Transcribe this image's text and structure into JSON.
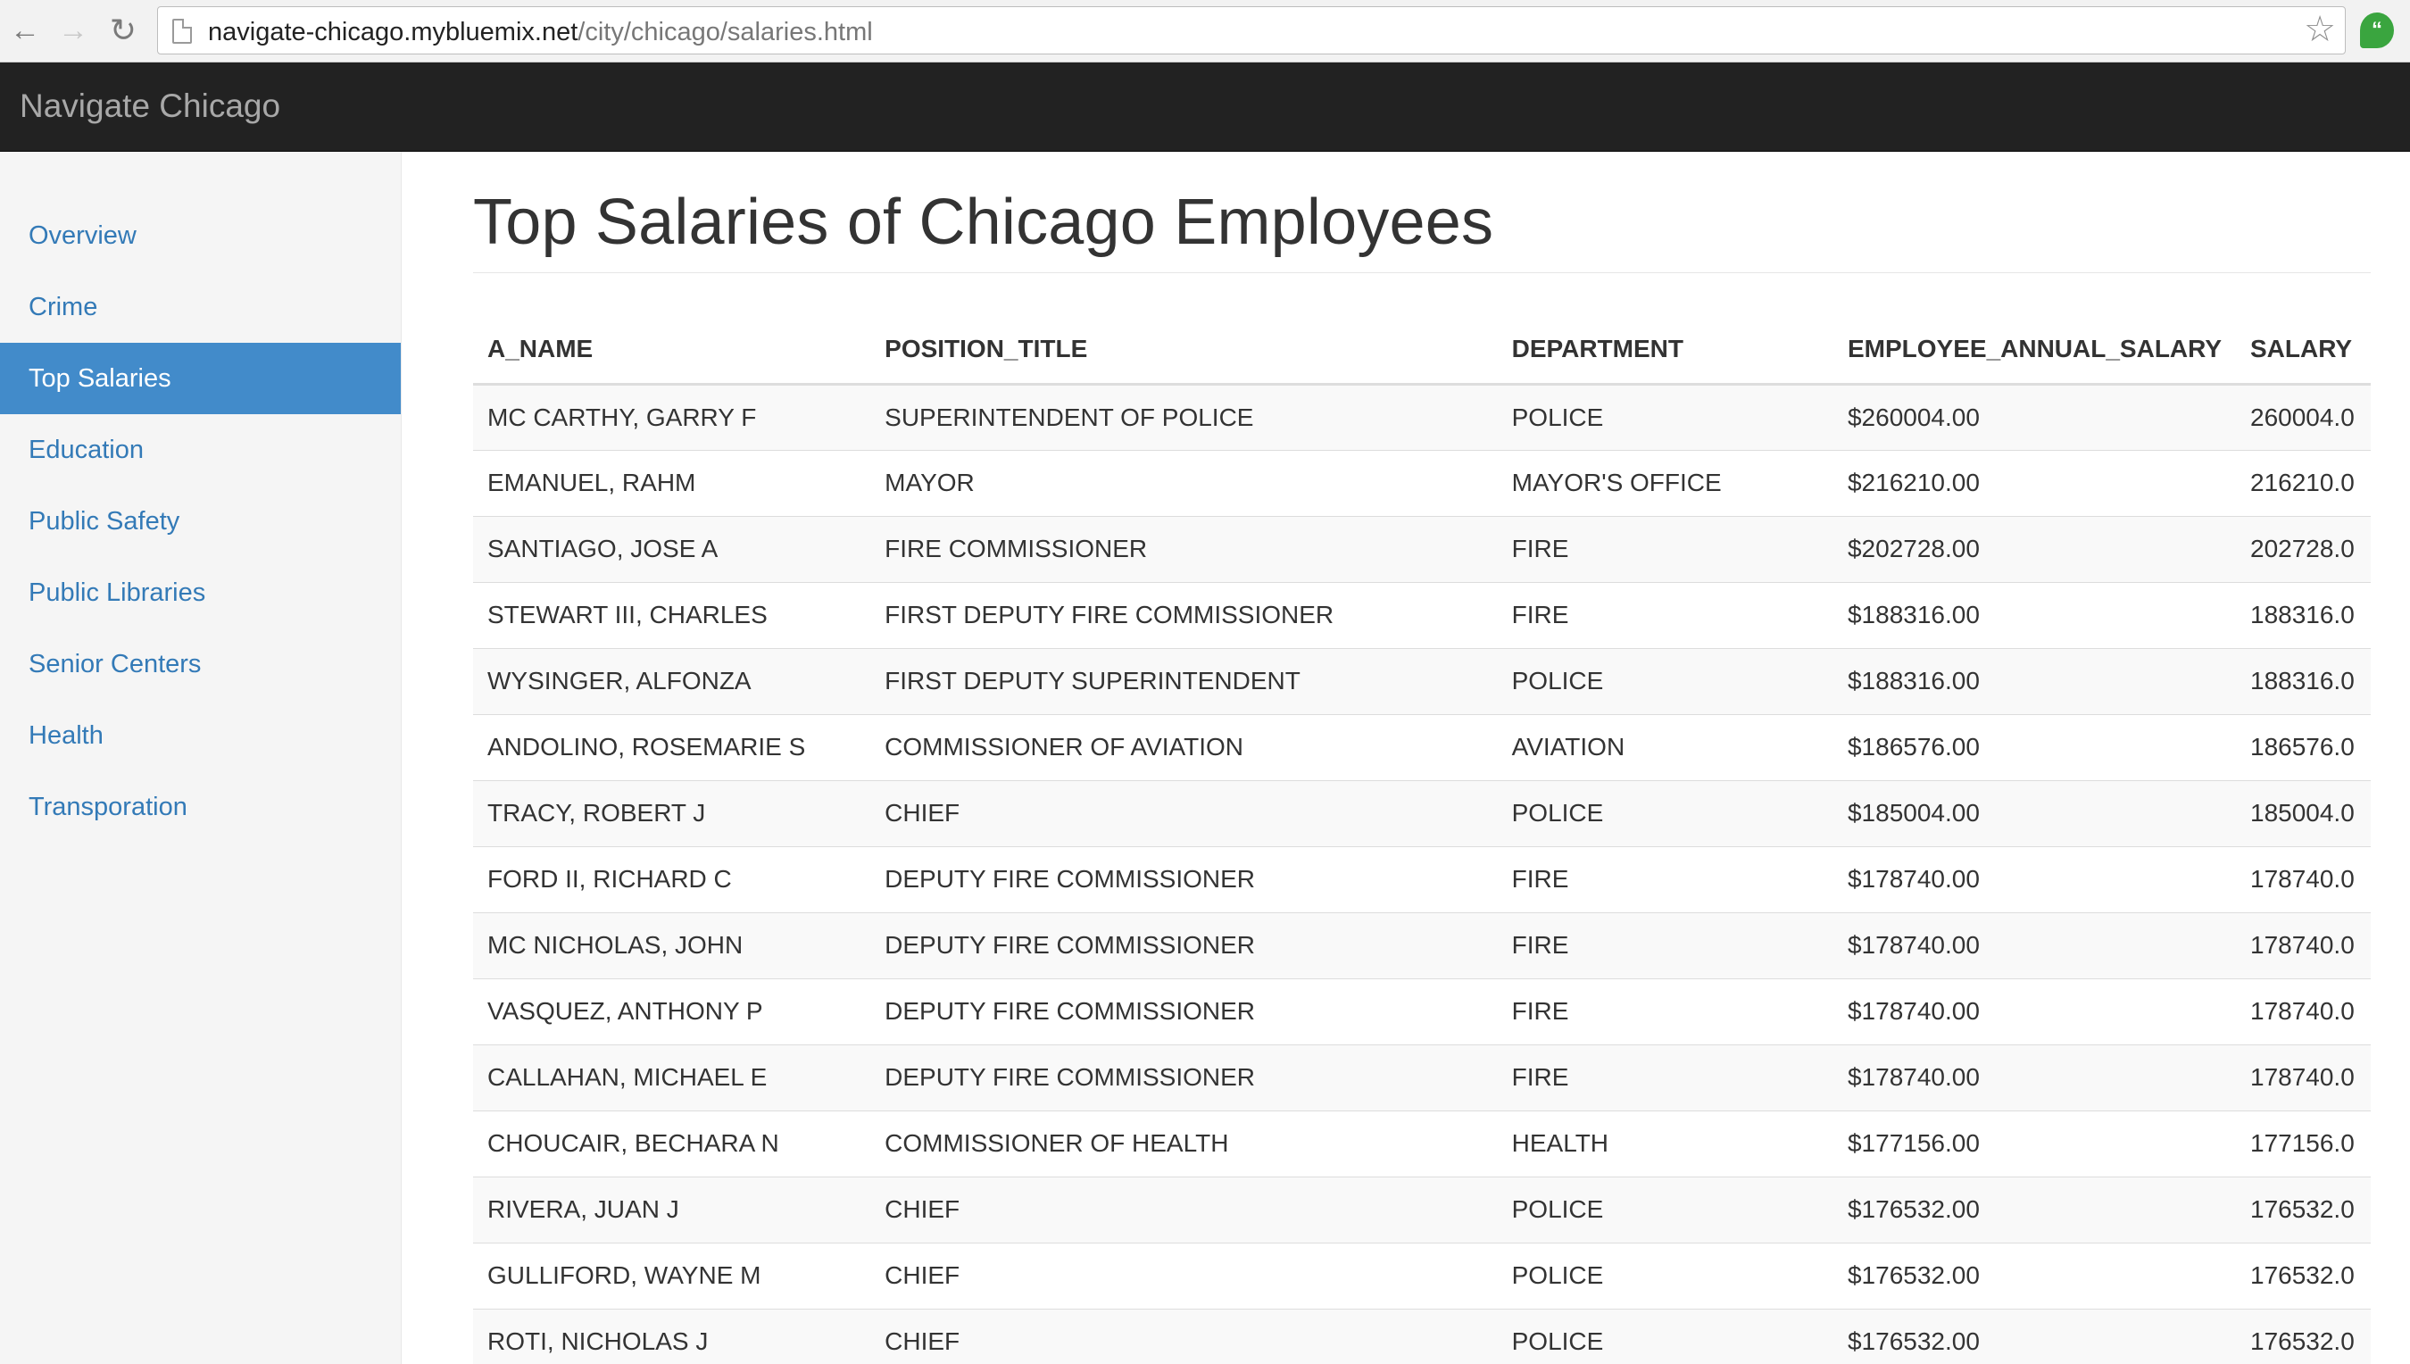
{
  "browser": {
    "url_host": "navigate-chicago.mybluemix.net",
    "url_path": "/city/chicago/salaries.html",
    "back_icon": "back-arrow-icon",
    "forward_icon": "forward-arrow-icon",
    "reload_icon": "reload-icon",
    "bookmark_icon": "star-icon",
    "extension_icon": "hangouts-icon"
  },
  "navbar": {
    "brand": "Navigate Chicago"
  },
  "sidebar": {
    "items": [
      {
        "label": "Overview",
        "active": false
      },
      {
        "label": "Crime",
        "active": false
      },
      {
        "label": "Top Salaries",
        "active": true
      },
      {
        "label": "Education",
        "active": false
      },
      {
        "label": "Public Safety",
        "active": false
      },
      {
        "label": "Public Libraries",
        "active": false
      },
      {
        "label": "Senior Centers",
        "active": false
      },
      {
        "label": "Health",
        "active": false
      },
      {
        "label": "Transporation",
        "active": false
      }
    ]
  },
  "main": {
    "title": "Top Salaries of Chicago Employees",
    "table": {
      "headers": [
        "A_NAME",
        "POSITION_TITLE",
        "DEPARTMENT",
        "EMPLOYEE_ANNUAL_SALARY",
        "SALARY"
      ],
      "rows": [
        [
          "MC CARTHY, GARRY F",
          "SUPERINTENDENT OF POLICE",
          "POLICE",
          "$260004.00",
          "260004.0"
        ],
        [
          "EMANUEL, RAHM",
          "MAYOR",
          "MAYOR'S OFFICE",
          "$216210.00",
          "216210.0"
        ],
        [
          "SANTIAGO, JOSE A",
          "FIRE COMMISSIONER",
          "FIRE",
          "$202728.00",
          "202728.0"
        ],
        [
          "STEWART III, CHARLES",
          "FIRST DEPUTY FIRE COMMISSIONER",
          "FIRE",
          "$188316.00",
          "188316.0"
        ],
        [
          "WYSINGER, ALFONZA",
          "FIRST DEPUTY SUPERINTENDENT",
          "POLICE",
          "$188316.00",
          "188316.0"
        ],
        [
          "ANDOLINO, ROSEMARIE S",
          "COMMISSIONER OF AVIATION",
          "AVIATION",
          "$186576.00",
          "186576.0"
        ],
        [
          "TRACY, ROBERT J",
          "CHIEF",
          "POLICE",
          "$185004.00",
          "185004.0"
        ],
        [
          "FORD II, RICHARD C",
          "DEPUTY FIRE COMMISSIONER",
          "FIRE",
          "$178740.00",
          "178740.0"
        ],
        [
          "MC NICHOLAS, JOHN",
          "DEPUTY FIRE COMMISSIONER",
          "FIRE",
          "$178740.00",
          "178740.0"
        ],
        [
          "VASQUEZ, ANTHONY P",
          "DEPUTY FIRE COMMISSIONER",
          "FIRE",
          "$178740.00",
          "178740.0"
        ],
        [
          "CALLAHAN, MICHAEL E",
          "DEPUTY FIRE COMMISSIONER",
          "FIRE",
          "$178740.00",
          "178740.0"
        ],
        [
          "CHOUCAIR, BECHARA N",
          "COMMISSIONER OF HEALTH",
          "HEALTH",
          "$177156.00",
          "177156.0"
        ],
        [
          "RIVERA, JUAN J",
          "CHIEF",
          "POLICE",
          "$176532.00",
          "176532.0"
        ],
        [
          "GULLIFORD, WAYNE M",
          "CHIEF",
          "POLICE",
          "$176532.00",
          "176532.0"
        ],
        [
          "ROTI, NICHOLAS J",
          "CHIEF",
          "POLICE",
          "$176532.00",
          "176532.0"
        ]
      ]
    }
  },
  "colors": {
    "navbar_bg": "#222222",
    "brand_text": "#a8a8a8",
    "link": "#337ab7",
    "active_bg": "#428bca",
    "sidebar_bg": "#f5f5f5"
  }
}
